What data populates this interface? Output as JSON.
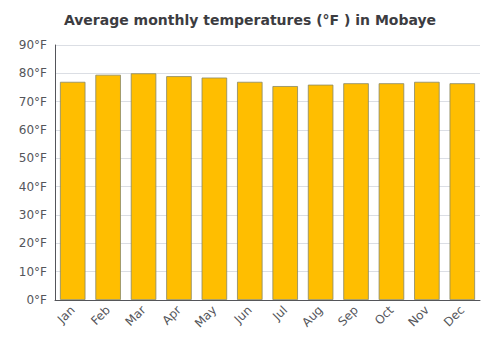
{
  "chart_data": {
    "type": "bar",
    "title": "Average monthly temperatures (°F ) in Mobaye",
    "categories": [
      "Jan",
      "Feb",
      "Mar",
      "Apr",
      "May",
      "Jun",
      "Jul",
      "Aug",
      "Sep",
      "Oct",
      "Nov",
      "Dec"
    ],
    "values": [
      77,
      79.5,
      80,
      79,
      78.5,
      77,
      75.5,
      76,
      76.5,
      76.5,
      77,
      76.5
    ],
    "color": "#FFBE00",
    "ylim": [
      0,
      90
    ],
    "yticks": [
      {
        "value": 0,
        "label": "0°F"
      },
      {
        "value": 10,
        "label": "10°F"
      },
      {
        "value": 20,
        "label": "20°F"
      },
      {
        "value": 30,
        "label": "30°F"
      },
      {
        "value": 40,
        "label": "40°F"
      },
      {
        "value": 50,
        "label": "50°F"
      },
      {
        "value": 60,
        "label": "60°F"
      },
      {
        "value": 70,
        "label": "70°F"
      },
      {
        "value": 80,
        "label": "80°F"
      },
      {
        "value": 90,
        "label": "90°F"
      }
    ],
    "grid": true
  }
}
